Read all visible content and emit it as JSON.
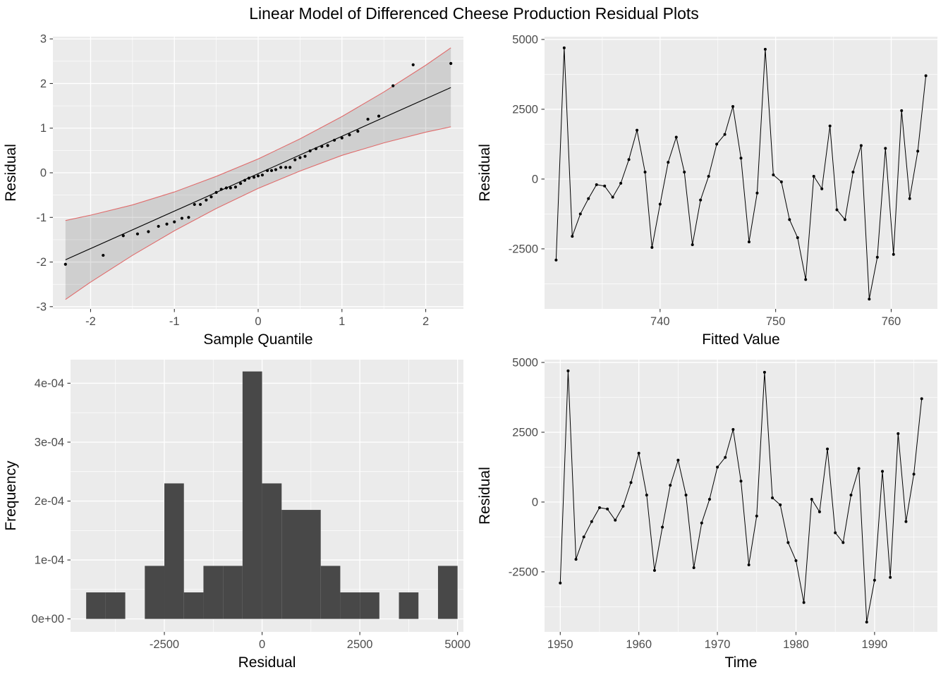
{
  "title": "Linear Model of Differenced Cheese Production Residual Plots",
  "colors": {
    "panel_bg": "#EBEBEB",
    "grid_major": "#FFFFFF",
    "grid_minor": "#FFFFFF",
    "point": "#000000",
    "line": "#000000",
    "bar_fill": "#484848",
    "band_fill": "rgba(40,40,40,0.14)",
    "band_edge": "#E06C6C",
    "tick_label": "#4D4D4D",
    "tick_mark": "#333333",
    "axis_title": "#000000"
  },
  "chart_data": [
    {
      "name": "qq-plot",
      "type": "scatter",
      "title": "",
      "xlabel": "Sample Quantile",
      "ylabel": "Residual",
      "xlim": [
        -2.45,
        2.45
      ],
      "ylim": [
        -3.05,
        3.05
      ],
      "xticks": [
        -2,
        -1,
        0,
        1,
        2
      ],
      "xtick_labels": [
        "-2",
        "-1",
        "0",
        "1",
        "2"
      ],
      "yticks": [
        -3,
        -2,
        -1,
        0,
        1,
        2,
        3
      ],
      "ytick_labels": [
        "-3",
        "-2",
        "-1",
        "0",
        "1",
        "2",
        "3"
      ],
      "xminor": [
        -1.5,
        -0.5,
        0.5,
        1.5
      ],
      "yminor": [
        -2.5,
        -1.5,
        -0.5,
        0.5,
        1.5,
        2.5
      ],
      "points_x": [
        -2.3,
        -1.85,
        -1.61,
        -1.44,
        -1.31,
        -1.19,
        -1.09,
        -1.0,
        -0.91,
        -0.83,
        -0.76,
        -0.69,
        -0.62,
        -0.56,
        -0.5,
        -0.44,
        -0.38,
        -0.33,
        -0.27,
        -0.21,
        -0.16,
        -0.11,
        -0.05,
        0.0,
        0.05,
        0.11,
        0.16,
        0.21,
        0.27,
        0.33,
        0.38,
        0.44,
        0.5,
        0.56,
        0.62,
        0.69,
        0.76,
        0.83,
        0.91,
        1.0,
        1.09,
        1.19,
        1.31,
        1.44,
        1.61,
        1.85,
        2.3
      ],
      "points_y": [
        -2.05,
        -1.85,
        -1.41,
        -1.37,
        -1.32,
        -1.2,
        -1.15,
        -1.1,
        -1.02,
        -1.0,
        -0.71,
        -0.71,
        -0.61,
        -0.54,
        -0.44,
        -0.37,
        -0.34,
        -0.34,
        -0.32,
        -0.24,
        -0.17,
        -0.12,
        -0.1,
        -0.07,
        -0.05,
        0.05,
        0.05,
        0.07,
        0.12,
        0.12,
        0.12,
        0.29,
        0.34,
        0.37,
        0.49,
        0.54,
        0.59,
        0.61,
        0.73,
        0.78,
        0.85,
        0.93,
        1.2,
        1.27,
        1.95,
        2.42,
        2.45
      ],
      "ref_line": {
        "x1": -2.3,
        "y1": -1.95,
        "x2": 2.3,
        "y2": 1.91
      },
      "band": {
        "x": [
          -2.3,
          -2.0,
          -1.5,
          -1.0,
          -0.5,
          0.0,
          0.5,
          1.0,
          1.5,
          2.0,
          2.3
        ],
        "lower": [
          -2.84,
          -2.45,
          -1.85,
          -1.3,
          -0.8,
          -0.35,
          0.04,
          0.39,
          0.67,
          0.91,
          1.03
        ],
        "upper": [
          -1.07,
          -0.95,
          -0.72,
          -0.43,
          -0.08,
          0.31,
          0.76,
          1.26,
          1.81,
          2.41,
          2.8
        ]
      }
    },
    {
      "name": "residuals-vs-fitted",
      "type": "line",
      "title": "",
      "xlabel": "Fitted Value",
      "ylabel": "Residual",
      "xlim": [
        730,
        764
      ],
      "ylim": [
        -4650,
        5100
      ],
      "xticks": [
        740,
        750,
        760
      ],
      "xtick_labels": [
        "740",
        "750",
        "760"
      ],
      "yticks": [
        -2500,
        0,
        2500,
        5000
      ],
      "ytick_labels": [
        "-2500",
        "0",
        "2500",
        "5000"
      ],
      "xminor": [
        735,
        745,
        755
      ],
      "yminor": [
        -3750,
        -1250,
        1250,
        3750
      ],
      "x": [
        731.0,
        731.7,
        732.4,
        733.1,
        733.8,
        734.5,
        735.2,
        735.9,
        736.6,
        737.3,
        738.0,
        738.7,
        739.3,
        740.0,
        740.7,
        741.4,
        742.1,
        742.8,
        743.5,
        744.2,
        744.9,
        745.6,
        746.3,
        747.0,
        747.7,
        748.4,
        749.1,
        749.8,
        750.5,
        751.2,
        751.9,
        752.6,
        753.3,
        754.0,
        754.7,
        755.3,
        756.0,
        756.7,
        757.4,
        758.1,
        758.8,
        759.5,
        760.2,
        760.9,
        761.6,
        762.3,
        763.0
      ],
      "y": [
        -2900,
        4700,
        -2050,
        -1250,
        -700,
        -200,
        -250,
        -650,
        -150,
        700,
        1750,
        250,
        -2450,
        -900,
        600,
        1500,
        250,
        -2350,
        -750,
        100,
        1250,
        1600,
        2600,
        750,
        -2250,
        -500,
        4650,
        150,
        -100,
        -1450,
        -2100,
        -3600,
        100,
        -350,
        1900,
        -1100,
        -1450,
        250,
        1200,
        -4300,
        -2800,
        1100,
        -2700,
        2450,
        -700,
        1000,
        3700
      ]
    },
    {
      "name": "residual-histogram",
      "type": "bar",
      "title": "",
      "xlabel": "Residual",
      "ylabel": "Frequency",
      "xlim": [
        -4900,
        5150
      ],
      "ylim": [
        -2.2e-05,
        0.00044
      ],
      "xticks": [
        -2500,
        0,
        2500,
        5000
      ],
      "xtick_labels": [
        "-2500",
        "0",
        "2500",
        "5000"
      ],
      "yticks": [
        0,
        0.0001,
        0.0002,
        0.0003,
        0.0004
      ],
      "ytick_labels": [
        "0e+00",
        "1e-04",
        "2e-04",
        "3e-04",
        "4e-04"
      ],
      "xminor": [
        -3750,
        -1250,
        1250,
        3750
      ],
      "yminor": [
        5e-05,
        0.00015,
        0.00025,
        0.00035
      ],
      "binwidth": 500,
      "bin_centers": [
        -4250,
        -3750,
        -2750,
        -2250,
        -1750,
        -1250,
        -750,
        -250,
        250,
        750,
        1250,
        1750,
        2250,
        2750,
        3750,
        4750
      ],
      "densities": [
        4.5e-05,
        4.5e-05,
        9e-05,
        0.00023,
        4.5e-05,
        9e-05,
        9e-05,
        0.00042,
        0.00023,
        0.000185,
        0.000185,
        9e-05,
        4.5e-05,
        4.5e-05,
        4.5e-05,
        9e-05
      ]
    },
    {
      "name": "residuals-vs-time",
      "type": "line",
      "title": "",
      "xlabel": "Time",
      "ylabel": "Residual",
      "xlim": [
        1948,
        1998
      ],
      "ylim": [
        -4650,
        5100
      ],
      "xticks": [
        1950,
        1960,
        1970,
        1980,
        1990
      ],
      "xtick_labels": [
        "1950",
        "1960",
        "1970",
        "1980",
        "1990"
      ],
      "yticks": [
        -2500,
        0,
        2500,
        5000
      ],
      "ytick_labels": [
        "-2500",
        "0",
        "2500",
        "5000"
      ],
      "xminor": [
        1955,
        1965,
        1975,
        1985,
        1995
      ],
      "yminor": [
        -3750,
        -1250,
        1250,
        3750
      ],
      "x": [
        1950,
        1951,
        1952,
        1953,
        1954,
        1955,
        1956,
        1957,
        1958,
        1959,
        1960,
        1961,
        1962,
        1963,
        1964,
        1965,
        1966,
        1967,
        1968,
        1969,
        1970,
        1971,
        1972,
        1973,
        1974,
        1975,
        1976,
        1977,
        1978,
        1979,
        1980,
        1981,
        1982,
        1983,
        1984,
        1985,
        1986,
        1987,
        1988,
        1989,
        1990,
        1991,
        1992,
        1993,
        1994,
        1995,
        1996
      ],
      "y": [
        -2900,
        4700,
        -2050,
        -1250,
        -700,
        -200,
        -250,
        -650,
        -150,
        700,
        1750,
        250,
        -2450,
        -900,
        600,
        1500,
        250,
        -2350,
        -750,
        100,
        1250,
        1600,
        2600,
        750,
        -2250,
        -500,
        4650,
        150,
        -100,
        -1450,
        -2100,
        -3600,
        100,
        -350,
        1900,
        -1100,
        -1450,
        250,
        1200,
        -4300,
        -2800,
        1100,
        -2700,
        2450,
        -700,
        1000,
        3700
      ]
    }
  ]
}
